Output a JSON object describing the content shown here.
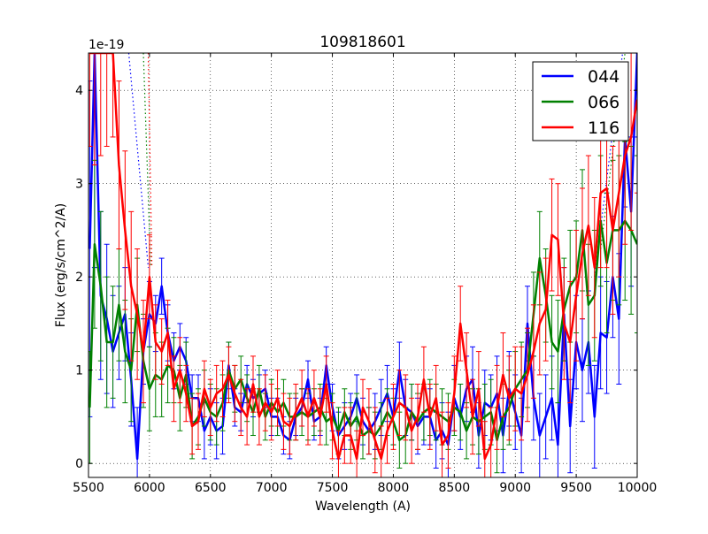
{
  "chart_data": {
    "type": "line",
    "title": "109818601",
    "xlabel": "Wavelength (A)",
    "ylabel": "Flux (erg/s/cm^2/A)",
    "y_offset_label": "1e-19",
    "xlim": [
      5500,
      10000
    ],
    "ylim": [
      -0.15,
      4.4
    ],
    "y_scale_note": "values in units of 1e-19",
    "x_ticks": [
      5500,
      6000,
      6500,
      7000,
      7500,
      8000,
      8500,
      9000,
      9500,
      10000
    ],
    "x_tick_labels": [
      "5500",
      "6000",
      "6500",
      "7000",
      "7500",
      "8000",
      "8500",
      "9000",
      "9500",
      "10000"
    ],
    "y_ticks": [
      0,
      1,
      2,
      3,
      4
    ],
    "y_tick_labels": [
      "0",
      "1",
      "2",
      "3",
      "4"
    ],
    "grid": true,
    "legend": "top-right",
    "series": [
      {
        "name": "044",
        "color": "#0000ff",
        "x": [
          5510,
          5550,
          5600,
          5650,
          5700,
          5750,
          5800,
          5850,
          5900,
          5950,
          6000,
          6050,
          6100,
          6150,
          6200,
          6250,
          6300,
          6350,
          6400,
          6450,
          6500,
          6550,
          6600,
          6650,
          6700,
          6750,
          6800,
          6850,
          6900,
          6950,
          7000,
          7050,
          7100,
          7150,
          7200,
          7250,
          7300,
          7350,
          7400,
          7450,
          7500,
          7550,
          7600,
          7650,
          7700,
          7750,
          7800,
          7850,
          7900,
          7950,
          8000,
          8050,
          8100,
          8150,
          8200,
          8250,
          8300,
          8350,
          8400,
          8450,
          8500,
          8550,
          8600,
          8650,
          8700,
          8750,
          8800,
          8850,
          8900,
          8950,
          9000,
          9050,
          9100,
          9150,
          9200,
          9250,
          9300,
          9350,
          9400,
          9450,
          9500,
          9550,
          9600,
          9650,
          9700,
          9750,
          9800,
          9850,
          9900,
          9950,
          10000
        ],
        "y": [
          2.3,
          4.4,
          1.8,
          1.55,
          1.2,
          1.4,
          1.6,
          0.9,
          0.05,
          1.2,
          1.6,
          1.5,
          1.9,
          1.4,
          1.1,
          1.25,
          1.1,
          0.7,
          0.7,
          0.35,
          0.5,
          0.35,
          0.4,
          1.05,
          0.6,
          0.55,
          0.85,
          0.7,
          0.75,
          0.8,
          0.5,
          0.5,
          0.3,
          0.25,
          0.5,
          0.6,
          0.9,
          0.45,
          0.5,
          1.05,
          0.6,
          0.3,
          0.4,
          0.5,
          0.7,
          0.45,
          0.35,
          0.45,
          0.6,
          0.75,
          0.5,
          1.0,
          0.6,
          0.55,
          0.4,
          0.5,
          0.5,
          0.25,
          0.35,
          0.2,
          0.7,
          0.5,
          0.8,
          0.9,
          0.3,
          0.65,
          0.6,
          0.75,
          0.3,
          0.8,
          0.55,
          0.3,
          1.5,
          0.7,
          0.3,
          0.5,
          0.7,
          0.2,
          1.6,
          0.4,
          1.3,
          1.0,
          1.3,
          0.5,
          1.4,
          1.35,
          2.0,
          1.55,
          3.5,
          2.7,
          4.4
        ],
        "err": [
          1.8,
          2.3,
          0.9,
          0.8,
          0.6,
          0.5,
          0.5,
          0.5,
          0.55,
          0.35,
          0.35,
          0.3,
          0.3,
          0.3,
          0.3,
          0.25,
          0.25,
          0.25,
          0.25,
          0.3,
          0.3,
          0.3,
          0.3,
          0.25,
          0.2,
          0.2,
          0.2,
          0.2,
          0.2,
          0.2,
          0.2,
          0.2,
          0.2,
          0.2,
          0.2,
          0.2,
          0.2,
          0.2,
          0.2,
          0.2,
          0.25,
          0.25,
          0.25,
          0.25,
          0.25,
          0.25,
          0.25,
          0.3,
          0.3,
          0.3,
          0.3,
          0.3,
          0.3,
          0.3,
          0.3,
          0.3,
          0.3,
          0.3,
          0.3,
          0.35,
          0.35,
          0.35,
          0.35,
          0.35,
          0.35,
          0.35,
          0.35,
          0.4,
          0.4,
          0.4,
          0.4,
          0.4,
          0.4,
          0.45,
          0.45,
          0.45,
          0.45,
          0.45,
          0.5,
          0.5,
          0.5,
          0.55,
          0.55,
          0.55,
          0.6,
          0.6,
          0.65,
          0.7,
          0.75,
          0.8,
          0.9
        ]
      },
      {
        "name": "066",
        "color": "#008000",
        "x": [
          5510,
          5550,
          5600,
          5650,
          5700,
          5750,
          5800,
          5850,
          5900,
          5950,
          6000,
          6050,
          6100,
          6150,
          6200,
          6250,
          6300,
          6350,
          6400,
          6450,
          6500,
          6550,
          6600,
          6650,
          6700,
          6750,
          6800,
          6850,
          6900,
          6950,
          7000,
          7050,
          7100,
          7150,
          7200,
          7250,
          7300,
          7350,
          7400,
          7450,
          7500,
          7550,
          7600,
          7650,
          7700,
          7750,
          7800,
          7850,
          7900,
          7950,
          8000,
          8050,
          8100,
          8150,
          8200,
          8250,
          8300,
          8350,
          8400,
          8450,
          8500,
          8550,
          8600,
          8650,
          8700,
          8750,
          8800,
          8850,
          8900,
          8950,
          9000,
          9050,
          9100,
          9150,
          9200,
          9250,
          9300,
          9350,
          9400,
          9450,
          9500,
          9550,
          9600,
          9650,
          9700,
          9750,
          9800,
          9850,
          9900,
          9950,
          10000
        ],
        "y": [
          0.6,
          2.35,
          1.9,
          1.3,
          1.3,
          1.7,
          1.2,
          1.0,
          1.7,
          1.1,
          0.8,
          0.95,
          0.9,
          1.05,
          1.0,
          0.7,
          0.95,
          0.4,
          0.5,
          0.7,
          0.55,
          0.5,
          0.65,
          1.0,
          0.8,
          0.9,
          0.7,
          0.55,
          0.8,
          0.5,
          0.65,
          0.55,
          0.65,
          0.5,
          0.5,
          0.55,
          0.5,
          0.55,
          0.6,
          0.45,
          0.5,
          0.35,
          0.55,
          0.4,
          0.5,
          0.3,
          0.35,
          0.3,
          0.4,
          0.55,
          0.45,
          0.25,
          0.3,
          0.55,
          0.45,
          0.55,
          0.6,
          0.55,
          0.5,
          0.45,
          0.6,
          0.55,
          0.35,
          0.5,
          0.45,
          0.5,
          0.55,
          0.25,
          0.5,
          0.6,
          0.8,
          0.9,
          1.0,
          1.6,
          2.2,
          1.8,
          1.3,
          1.2,
          1.65,
          1.9,
          2.0,
          2.5,
          1.7,
          1.8,
          2.6,
          2.15,
          2.5,
          2.5,
          2.6,
          2.5,
          2.35
        ],
        "err": [
          0.6,
          0.9,
          0.8,
          0.7,
          0.6,
          0.6,
          0.55,
          0.55,
          0.5,
          0.5,
          0.45,
          0.45,
          0.4,
          0.4,
          0.35,
          0.35,
          0.35,
          0.35,
          0.3,
          0.3,
          0.3,
          0.3,
          0.3,
          0.3,
          0.25,
          0.25,
          0.25,
          0.25,
          0.25,
          0.25,
          0.25,
          0.25,
          0.25,
          0.25,
          0.25,
          0.25,
          0.25,
          0.25,
          0.25,
          0.25,
          0.25,
          0.25,
          0.25,
          0.25,
          0.25,
          0.25,
          0.25,
          0.25,
          0.25,
          0.25,
          0.25,
          0.3,
          0.3,
          0.3,
          0.3,
          0.3,
          0.3,
          0.3,
          0.3,
          0.3,
          0.3,
          0.3,
          0.3,
          0.3,
          0.35,
          0.35,
          0.35,
          0.35,
          0.35,
          0.4,
          0.4,
          0.4,
          0.4,
          0.45,
          0.5,
          0.5,
          0.5,
          0.55,
          0.55,
          0.6,
          0.6,
          0.65,
          0.65,
          0.7,
          0.7,
          0.75,
          0.75,
          0.8,
          0.85,
          0.9,
          0.95
        ]
      },
      {
        "name": "116",
        "color": "#ff0000",
        "x": [
          5510,
          5550,
          5600,
          5650,
          5700,
          5750,
          5800,
          5850,
          5900,
          5950,
          6000,
          6050,
          6100,
          6150,
          6200,
          6250,
          6300,
          6350,
          6400,
          6450,
          6500,
          6550,
          6600,
          6650,
          6700,
          6750,
          6800,
          6850,
          6900,
          6950,
          7000,
          7050,
          7100,
          7150,
          7200,
          7250,
          7300,
          7350,
          7400,
          7450,
          7500,
          7550,
          7600,
          7650,
          7700,
          7750,
          7800,
          7850,
          7900,
          7950,
          8000,
          8050,
          8100,
          8150,
          8200,
          8250,
          8300,
          8350,
          8400,
          8450,
          8500,
          8550,
          8600,
          8650,
          8700,
          8750,
          8800,
          8850,
          8900,
          8950,
          9000,
          9050,
          9100,
          9150,
          9200,
          9250,
          9300,
          9350,
          9400,
          9450,
          9500,
          9550,
          9600,
          9650,
          9700,
          9750,
          9800,
          9850,
          9900,
          9950,
          10000
        ],
        "y": [
          4.4,
          4.4,
          4.4,
          4.4,
          4.4,
          3.2,
          2.5,
          1.9,
          1.6,
          1.2,
          2.0,
          1.3,
          1.2,
          1.4,
          0.8,
          1.0,
          0.75,
          0.4,
          0.45,
          0.8,
          0.6,
          0.75,
          0.8,
          0.95,
          0.75,
          0.6,
          0.5,
          0.85,
          0.5,
          0.65,
          0.55,
          0.7,
          0.45,
          0.4,
          0.55,
          0.7,
          0.5,
          0.7,
          0.5,
          0.85,
          0.35,
          0.05,
          0.3,
          0.3,
          0.05,
          0.6,
          0.45,
          0.25,
          0.05,
          0.35,
          0.5,
          0.65,
          0.6,
          0.35,
          0.5,
          0.9,
          0.5,
          0.7,
          0.2,
          0.3,
          0.75,
          1.5,
          1.0,
          0.5,
          0.8,
          0.05,
          0.2,
          0.6,
          0.95,
          0.7,
          0.8,
          0.75,
          0.95,
          1.2,
          1.5,
          1.65,
          2.45,
          2.4,
          1.5,
          1.3,
          1.8,
          2.25,
          2.55,
          2.1,
          2.9,
          2.95,
          2.5,
          2.9,
          3.3,
          3.5,
          3.9
        ],
        "err": [
          1.0,
          1.2,
          1.1,
          1.0,
          0.9,
          0.9,
          0.85,
          0.8,
          0.7,
          0.55,
          0.45,
          0.4,
          0.35,
          0.35,
          0.35,
          0.35,
          0.3,
          0.3,
          0.3,
          0.3,
          0.3,
          0.3,
          0.3,
          0.3,
          0.3,
          0.3,
          0.3,
          0.3,
          0.3,
          0.3,
          0.3,
          0.3,
          0.3,
          0.3,
          0.3,
          0.3,
          0.3,
          0.3,
          0.3,
          0.3,
          0.3,
          0.3,
          0.3,
          0.3,
          0.3,
          0.3,
          0.35,
          0.35,
          0.35,
          0.35,
          0.35,
          0.35,
          0.35,
          0.35,
          0.35,
          0.35,
          0.35,
          0.35,
          0.35,
          0.35,
          0.4,
          0.4,
          0.4,
          0.4,
          0.4,
          0.4,
          0.4,
          0.45,
          0.45,
          0.45,
          0.45,
          0.5,
          0.5,
          0.5,
          0.55,
          0.55,
          0.6,
          0.6,
          0.6,
          0.65,
          0.7,
          0.7,
          0.75,
          0.75,
          0.8,
          0.85,
          0.9,
          0.9,
          0.95,
          1.0,
          1.0
        ]
      }
    ],
    "extrapolation_lines": [
      {
        "series": "044",
        "color": "#0000ff",
        "x": [
          5830,
          5990
        ],
        "y": [
          4.4,
          2.1
        ]
      },
      {
        "series": "066",
        "color": "#008000",
        "x": [
          5950,
          6010
        ],
        "y": [
          4.4,
          2.1
        ]
      },
      {
        "series": "116",
        "color": "#ff0000",
        "x": [
          5990,
          6020
        ],
        "y": [
          4.4,
          2.1
        ]
      },
      {
        "series": "044",
        "color": "#0000ff",
        "x": [
          9650,
          9880
        ],
        "y": [
          2.0,
          4.4
        ]
      },
      {
        "series": "066",
        "color": "#008000",
        "x": [
          9700,
          9900
        ],
        "y": [
          2.3,
          4.4
        ]
      }
    ]
  }
}
